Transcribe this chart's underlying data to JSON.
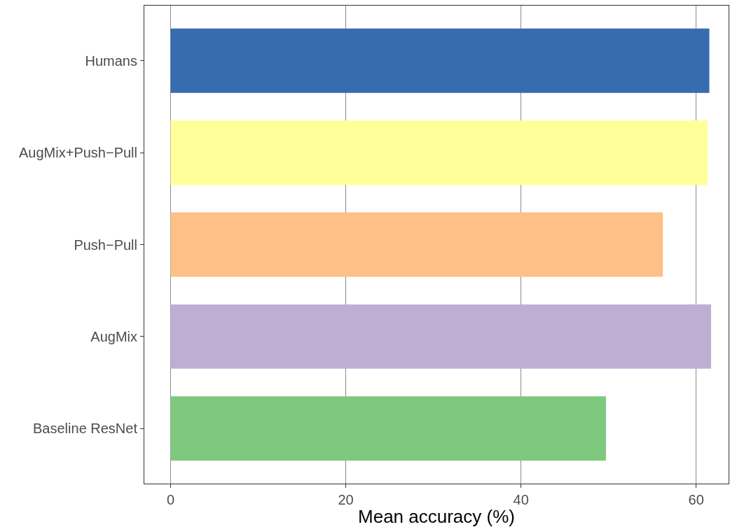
{
  "chart_data": {
    "type": "bar",
    "orientation": "horizontal",
    "xlabel": "Mean accuracy (%)",
    "categories": [
      "Humans",
      "AugMix+Push−Pull",
      "Push−Pull",
      "AugMix",
      "Baseline ResNet"
    ],
    "values": [
      61.5,
      61.3,
      56.2,
      61.7,
      49.7
    ],
    "colors": [
      "#386cb0",
      "#ffff99",
      "#fdc086",
      "#beaed4",
      "#7fc97f"
    ],
    "xlim": [
      -3,
      63.7
    ],
    "xticks": [
      0,
      20,
      40,
      60
    ],
    "grid": "x"
  }
}
